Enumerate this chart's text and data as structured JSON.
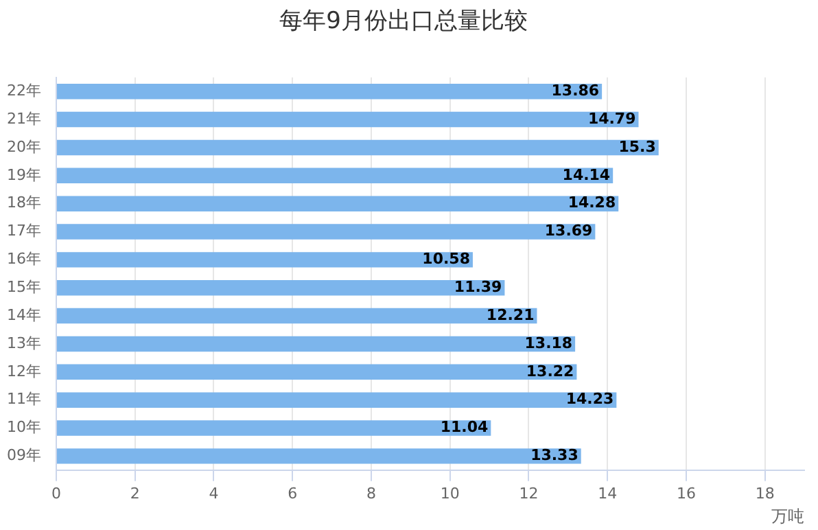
{
  "chart_data": {
    "type": "bar",
    "orientation": "horizontal",
    "title": "每年9月份出口总量比较",
    "xlabel": "万吨",
    "categories": [
      "22年",
      "21年",
      "20年",
      "19年",
      "18年",
      "17年",
      "16年",
      "15年",
      "14年",
      "13年",
      "12年",
      "11年",
      "10年",
      "09年"
    ],
    "values": [
      13.86,
      14.79,
      15.3,
      14.14,
      14.28,
      13.69,
      10.58,
      11.39,
      12.21,
      13.18,
      13.22,
      14.23,
      11.04,
      13.33
    ],
    "color": "#7cb5ec",
    "xlim": [
      0,
      19
    ],
    "xticks": [
      0,
      2,
      4,
      6,
      8,
      10,
      12,
      14,
      16,
      18
    ],
    "grid": "x",
    "data_labels": true,
    "legend": false
  }
}
